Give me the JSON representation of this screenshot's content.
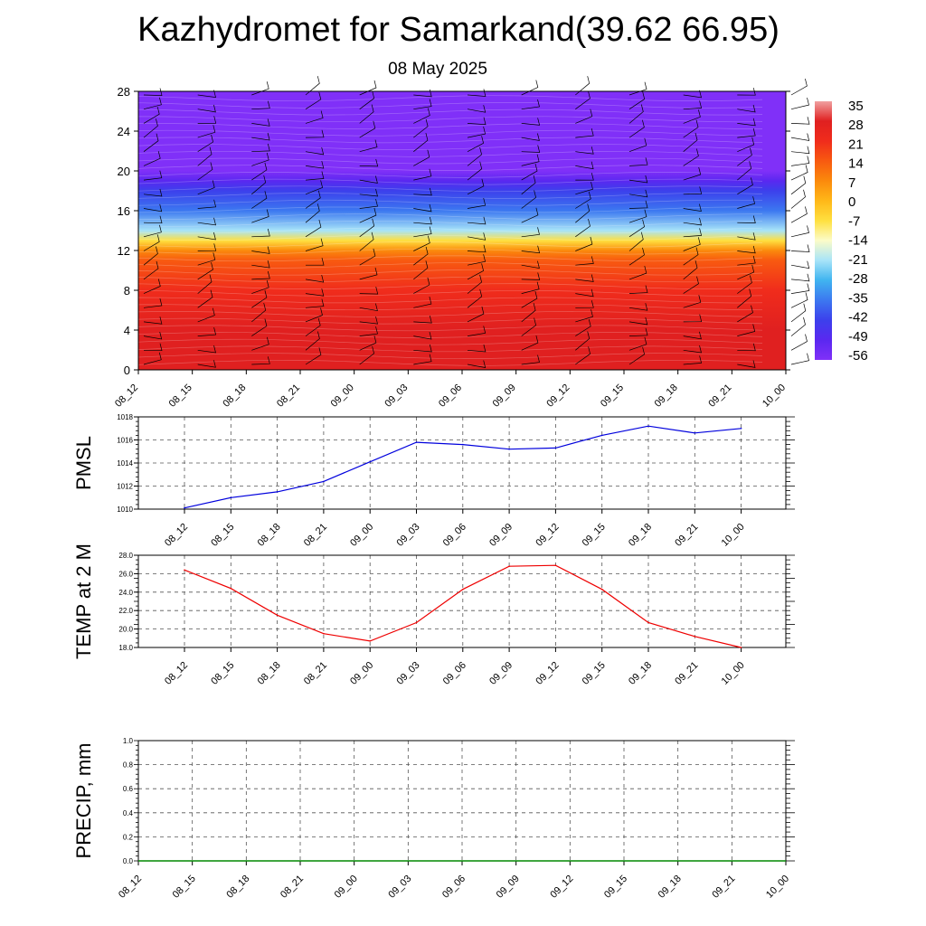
{
  "header": {
    "title": "Kazhydromet for Samarkand(39.62 66.95)",
    "date": "08 May 2025"
  },
  "colors": {
    "pmsl_line": "#0000dd",
    "temp_line": "#ee0000",
    "precip_line": "#008800"
  },
  "chart_data": [
    {
      "type": "heatmap",
      "name_hint": "vertical temperature cross-section with wind barbs",
      "x": [
        "08_12",
        "08_15",
        "08_18",
        "08_21",
        "09_00",
        "09_03",
        "09_06",
        "09_09",
        "09_12",
        "09_15",
        "09_18",
        "09_21",
        "10_00"
      ],
      "y_ticks": [
        0,
        4,
        8,
        12,
        16,
        20,
        24,
        28
      ],
      "ylim": [
        0,
        28
      ],
      "colorbar": {
        "labels": [
          "35",
          "28",
          "21",
          "14",
          "7",
          "0",
          "-7",
          "-14",
          "-21",
          "-28",
          "-35",
          "-42",
          "-49",
          "-56"
        ],
        "colors": [
          "#f0a0a0",
          "#e02020",
          "#f02c1c",
          "#f85a10",
          "#fb8a0c",
          "#ffb818",
          "#ffe040",
          "#fcfcc8",
          "#a8e4f8",
          "#40b4f0",
          "#3c78f0",
          "#3c40ec",
          "#5a28f0",
          "#8030f8"
        ]
      },
      "profile_levels": [
        0,
        4,
        8,
        11,
        12,
        13,
        14,
        16,
        18,
        19,
        20,
        21,
        23,
        28
      ],
      "profile_values": [
        31,
        27,
        20,
        12,
        4,
        -8,
        -20,
        -33,
        -44,
        -50,
        -56,
        -60,
        -58,
        -58
      ],
      "barbs": "wind barbs plotted at each time and level",
      "grid": false
    },
    {
      "type": "line",
      "ylabel": "PMSL",
      "x": [
        "08_12",
        "08_15",
        "08_18",
        "08_21",
        "09_00",
        "09_03",
        "09_06",
        "09_09",
        "09_12",
        "09_15",
        "09_18",
        "09_21",
        "10_00"
      ],
      "series": [
        {
          "values": [
            1010.1,
            1011.0,
            1011.5,
            1012.4,
            1014.1,
            1015.8,
            1015.6,
            1015.2,
            1015.3,
            1016.4,
            1017.2,
            1016.6,
            1017.0
          ]
        }
      ],
      "ylim": [
        1010,
        1018
      ],
      "y_ticks": [
        "1010",
        "1012",
        "1014",
        "1016",
        "1018"
      ],
      "grid": true
    },
    {
      "type": "line",
      "ylabel": "TEMP at 2 M",
      "x": [
        "08_12",
        "08_15",
        "08_18",
        "08_21",
        "09_00",
        "09_03",
        "09_06",
        "09_09",
        "09_12",
        "09_15",
        "09_18",
        "09_21",
        "10_00"
      ],
      "series": [
        {
          "values": [
            26.4,
            24.4,
            21.5,
            19.5,
            18.7,
            20.7,
            24.3,
            26.8,
            26.9,
            24.3,
            20.7,
            19.2,
            18.0
          ]
        }
      ],
      "ylim": [
        18,
        28
      ],
      "y_ticks": [
        "18.0",
        "20.0",
        "22.0",
        "24.0",
        "26.0",
        "28.0"
      ],
      "grid": true
    },
    {
      "type": "line",
      "ylabel": "PRECIP, mm",
      "x": [
        "08_12",
        "08_15",
        "08_18",
        "08_21",
        "09_00",
        "09_03",
        "09_06",
        "09_09",
        "09_12",
        "09_15",
        "09_18",
        "09_21",
        "10_00"
      ],
      "series": [
        {
          "values": [
            0,
            0,
            0,
            0,
            0,
            0,
            0,
            0,
            0,
            0,
            0,
            0,
            0
          ]
        }
      ],
      "ylim": [
        0,
        1
      ],
      "y_ticks": [
        "0.0",
        "0.2",
        "0.4",
        "0.6",
        "0.8",
        "1.0"
      ],
      "grid": true
    }
  ]
}
